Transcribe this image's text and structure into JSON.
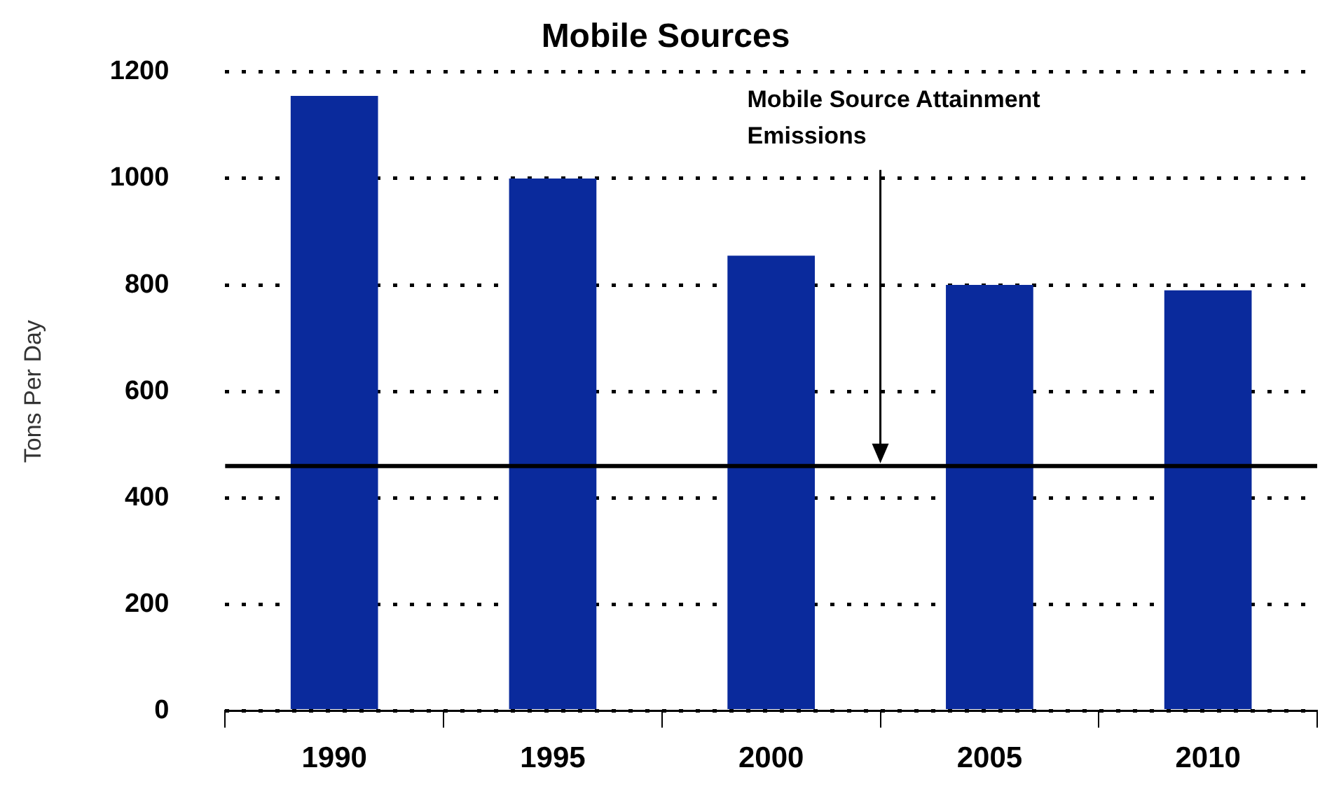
{
  "chart_data": {
    "type": "bar",
    "title": "Mobile Sources",
    "ylabel": "Tons Per Day",
    "categories": [
      "1990",
      "1995",
      "2000",
      "2005",
      "2010"
    ],
    "values": [
      1155,
      1000,
      855,
      800,
      790
    ],
    "color": "#0a2a9c",
    "ylim": [
      0,
      1200
    ],
    "yticks": [
      0,
      200,
      400,
      600,
      800,
      1000,
      1200
    ],
    "grid": "y",
    "legend": false,
    "ref_lines": [
      {
        "axis": "y",
        "value": 460,
        "label": "Mobile Source Attainment Emissions",
        "color": "#000000"
      }
    ]
  }
}
